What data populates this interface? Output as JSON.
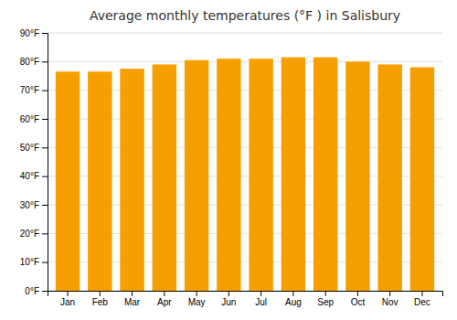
{
  "chart_data": {
    "type": "bar",
    "title": "Average monthly temperatures (°F ) in Salisbury",
    "categories": [
      "Jan",
      "Feb",
      "Mar",
      "Apr",
      "May",
      "Jun",
      "Jul",
      "Aug",
      "Sep",
      "Oct",
      "Nov",
      "Dec"
    ],
    "values": [
      76.5,
      76.5,
      77.5,
      79.0,
      80.5,
      81.0,
      81.0,
      81.5,
      81.5,
      80.0,
      79.0,
      78.0
    ],
    "color": "#F5A000",
    "ylim": [
      0,
      90
    ],
    "yticks": [
      {
        "value": 0,
        "label": "0°F"
      },
      {
        "value": 10,
        "label": "10°F"
      },
      {
        "value": 20,
        "label": "20°F"
      },
      {
        "value": 30,
        "label": "30°F"
      },
      {
        "value": 40,
        "label": "40°F"
      },
      {
        "value": 50,
        "label": "50°F"
      },
      {
        "value": 60,
        "label": "60°F"
      },
      {
        "value": 70,
        "label": "70°F"
      },
      {
        "value": 80,
        "label": "80°F"
      },
      {
        "value": 90,
        "label": "90°F"
      }
    ],
    "grid": true
  }
}
